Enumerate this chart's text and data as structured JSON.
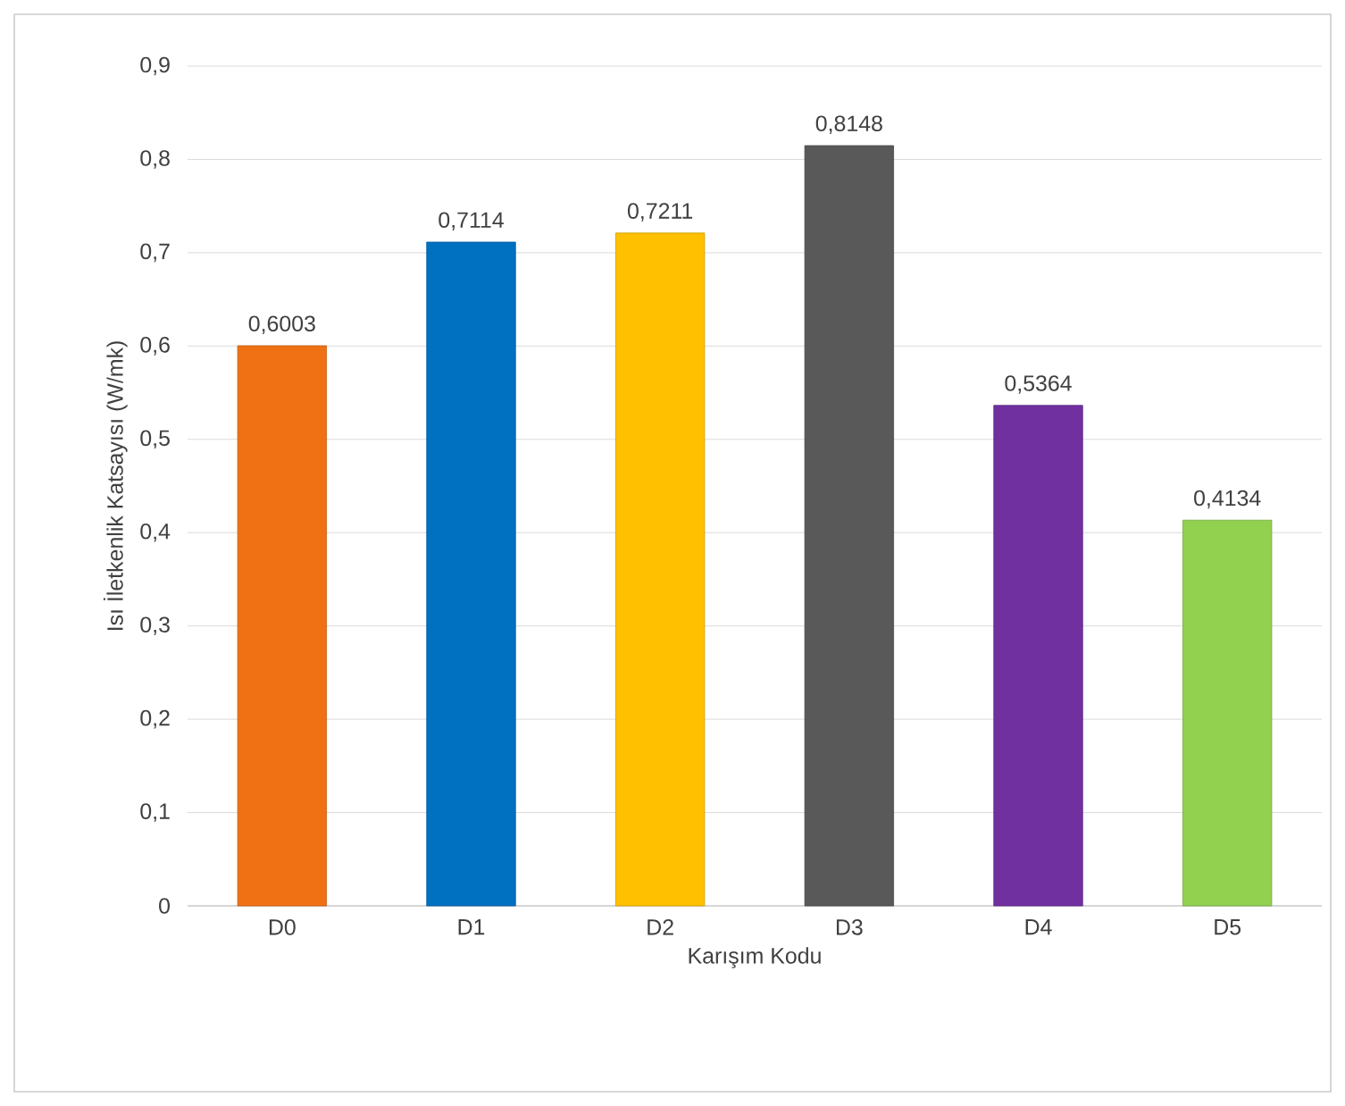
{
  "chart_data": {
    "type": "bar",
    "xlabel": "Karışım Kodu",
    "ylabel": "Isı İletkenlik Katsayısı (W/mk)",
    "categories": [
      "D0",
      "D1",
      "D2",
      "D3",
      "D4",
      "D5"
    ],
    "values": [
      0.6003,
      0.7114,
      0.7211,
      0.8148,
      0.5364,
      0.4134
    ],
    "colors": [
      "#f07114",
      "#0070c0",
      "#ffc000",
      "#595959",
      "#7030a0",
      "#92d050"
    ],
    "value_labels": [
      "0,6003",
      "0,7114",
      "0,7211",
      "0,8148",
      "0,5364",
      "0,4134"
    ],
    "ylim": [
      0,
      0.9
    ],
    "yticks": [
      0,
      {
        "value": 0.1,
        "label": "0,1"
      },
      {
        "value": 0.2,
        "label": "0,2"
      },
      {
        "value": 0.3,
        "label": "0,3"
      },
      {
        "value": 0.4,
        "label": "0,4"
      },
      {
        "value": 0.5,
        "label": "0,5"
      },
      {
        "value": 0.6,
        "label": "0,6"
      },
      {
        "value": 0.7,
        "label": "0,7"
      },
      {
        "value": 0.8,
        "label": "0,8"
      },
      {
        "value": 0.9,
        "label": "0,9"
      }
    ],
    "grid": "y"
  }
}
